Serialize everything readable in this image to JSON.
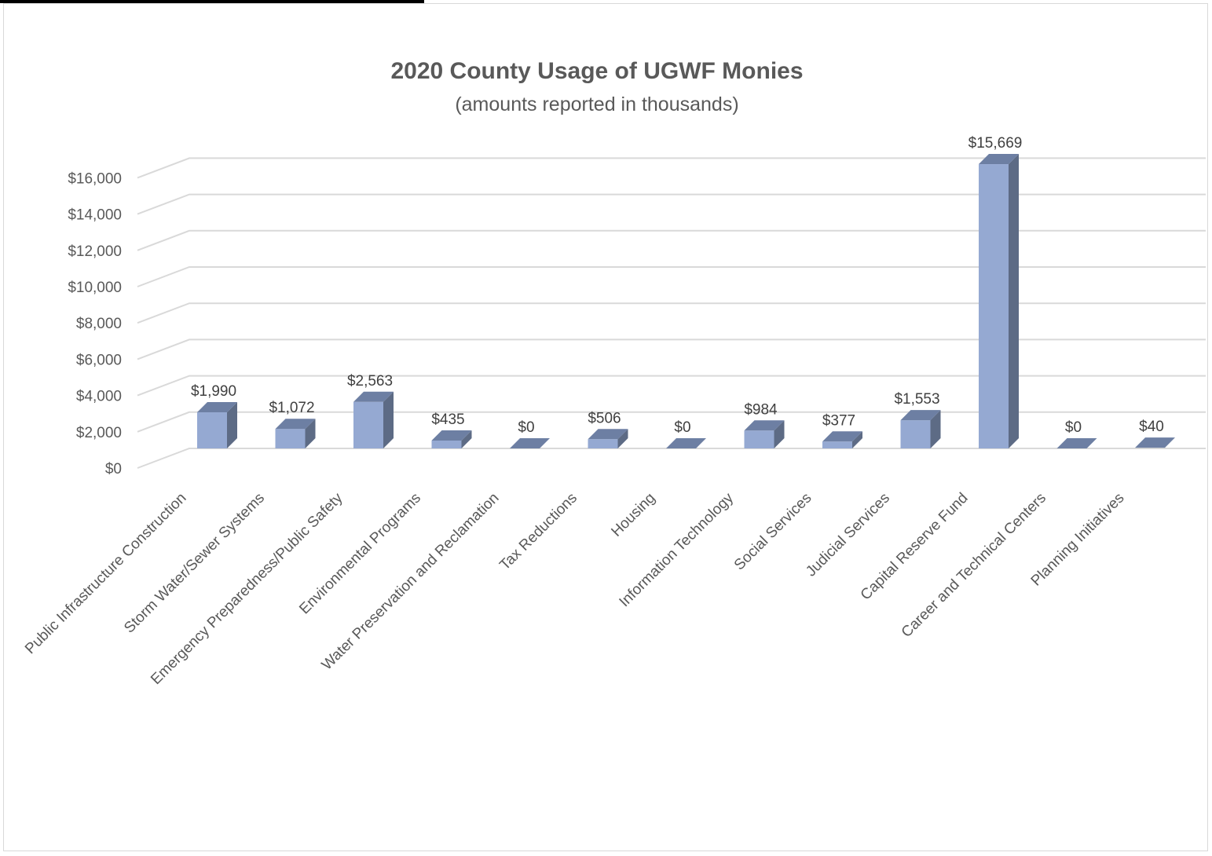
{
  "chart_data": {
    "type": "bar",
    "title": "2020 County Usage of UGWF Monies",
    "subtitle": "(amounts reported in thousands)",
    "categories": [
      "Public Infrastructure Construction",
      "Storm Water/Sewer Systems",
      "Emergency Preparedness/Public Safety",
      "Environmental Programs",
      "Water Preservation and Reclamation",
      "Tax Reductions",
      "Housing",
      "Information Technology",
      "Social Services",
      "Judicial Services",
      "Capital Reserve Fund",
      "Career and Technical Centers",
      "Planning Initiatives"
    ],
    "values": [
      1990,
      1072,
      2563,
      435,
      0,
      506,
      0,
      984,
      377,
      1553,
      15669,
      0,
      40
    ],
    "data_labels": [
      "$1,990",
      "$1,072",
      "$2,563",
      "$435",
      "$0",
      "$506",
      "$0",
      "$984",
      "$377",
      "$1,553",
      "$15,669",
      "$0",
      "$40"
    ],
    "y_ticks": [
      0,
      2000,
      4000,
      6000,
      8000,
      10000,
      12000,
      14000,
      16000
    ],
    "y_tick_labels": [
      "$0",
      "$2,000",
      "$4,000",
      "$6,000",
      "$8,000",
      "$10,000",
      "$12,000",
      "$14,000",
      "$16,000"
    ],
    "ylim": [
      0,
      16000
    ],
    "grid": true,
    "legend": "none",
    "three_d": true,
    "colors": {
      "bar_front": "#95a9d2",
      "bar_top": "#6d7fa3",
      "bar_side": "#5d6b85",
      "gridline": "#d9d9d9",
      "axis_text": "#595959",
      "title_text": "#595959"
    }
  }
}
